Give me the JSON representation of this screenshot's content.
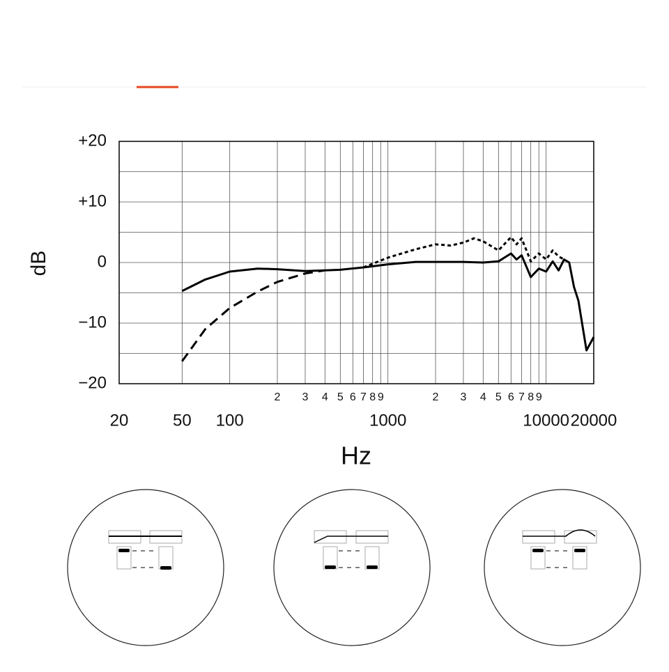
{
  "chart_data": {
    "type": "line",
    "y_label": "dB",
    "x_label": "Hz",
    "xscale": "log",
    "xlim": [
      20,
      20000
    ],
    "xticks": [
      20,
      50,
      100,
      1000,
      10000,
      20000
    ],
    "xminorticks": [
      {
        "value": 200,
        "label": "2"
      },
      {
        "value": 300,
        "label": "3"
      },
      {
        "value": 400,
        "label": "4"
      },
      {
        "value": 500,
        "label": "5"
      },
      {
        "value": 600,
        "label": "6"
      },
      {
        "value": 700,
        "label": "7"
      },
      {
        "value": 800,
        "label": "8"
      },
      {
        "value": 900,
        "label": "9"
      },
      {
        "value": 2000,
        "label": "2"
      },
      {
        "value": 3000,
        "label": "3"
      },
      {
        "value": 4000,
        "label": "4"
      },
      {
        "value": 5000,
        "label": "5"
      },
      {
        "value": 6000,
        "label": "6"
      },
      {
        "value": 7000,
        "label": "7"
      },
      {
        "value": 8000,
        "label": "8"
      },
      {
        "value": 9000,
        "label": "9"
      }
    ],
    "ylim": [
      -20,
      20
    ],
    "yticks": [
      {
        "value": 20,
        "label": "+20"
      },
      {
        "value": 10,
        "label": "+10"
      },
      0,
      {
        "value": -10,
        "label": "−10"
      },
      {
        "value": -20,
        "label": "−20"
      }
    ],
    "yminorticks": [
      -15,
      -5,
      5,
      15
    ],
    "grid": true,
    "series": [
      {
        "color": "#000000",
        "dash": "solid",
        "x": [
          50,
          70,
          100,
          150,
          200,
          300,
          400,
          500,
          700,
          1000,
          1500,
          2000,
          3000,
          4000,
          5000,
          6000,
          6500,
          7000,
          8000,
          9000,
          10000,
          11000,
          12000,
          13000,
          14000,
          15000,
          16000,
          18000,
          20000
        ],
        "values": [
          -4.7,
          -2.8,
          -1.5,
          -1.0,
          -1.1,
          -1.4,
          -1.3,
          -1.2,
          -0.8,
          -0.3,
          0.1,
          0.1,
          0.1,
          0.0,
          0.2,
          1.5,
          0.5,
          1.2,
          -2.4,
          -1.0,
          -1.5,
          0.2,
          -1.3,
          0.5,
          0.0,
          -4.0,
          -6.3,
          -14.5,
          -12.3
        ]
      },
      {
        "color": "#000000",
        "dash": "dashed",
        "x": [
          50,
          70,
          100,
          150,
          200,
          300,
          400
        ],
        "values": [
          -16.3,
          -11.0,
          -7.5,
          -4.8,
          -3.2,
          -1.8,
          -1.3
        ]
      },
      {
        "color": "#000000",
        "dash": "dotted",
        "x": [
          700,
          1000,
          1500,
          2000,
          2500,
          3000,
          3500,
          4000,
          5000,
          6000,
          6500,
          7000,
          8000,
          9000,
          10000,
          11000,
          12000,
          13000
        ],
        "values": [
          -0.8,
          0.8,
          2.2,
          3.0,
          2.8,
          3.3,
          4.0,
          3.5,
          2.0,
          4.2,
          3.0,
          4.0,
          0.2,
          1.5,
          0.5,
          2.0,
          1.0,
          0.5
        ]
      }
    ]
  }
}
